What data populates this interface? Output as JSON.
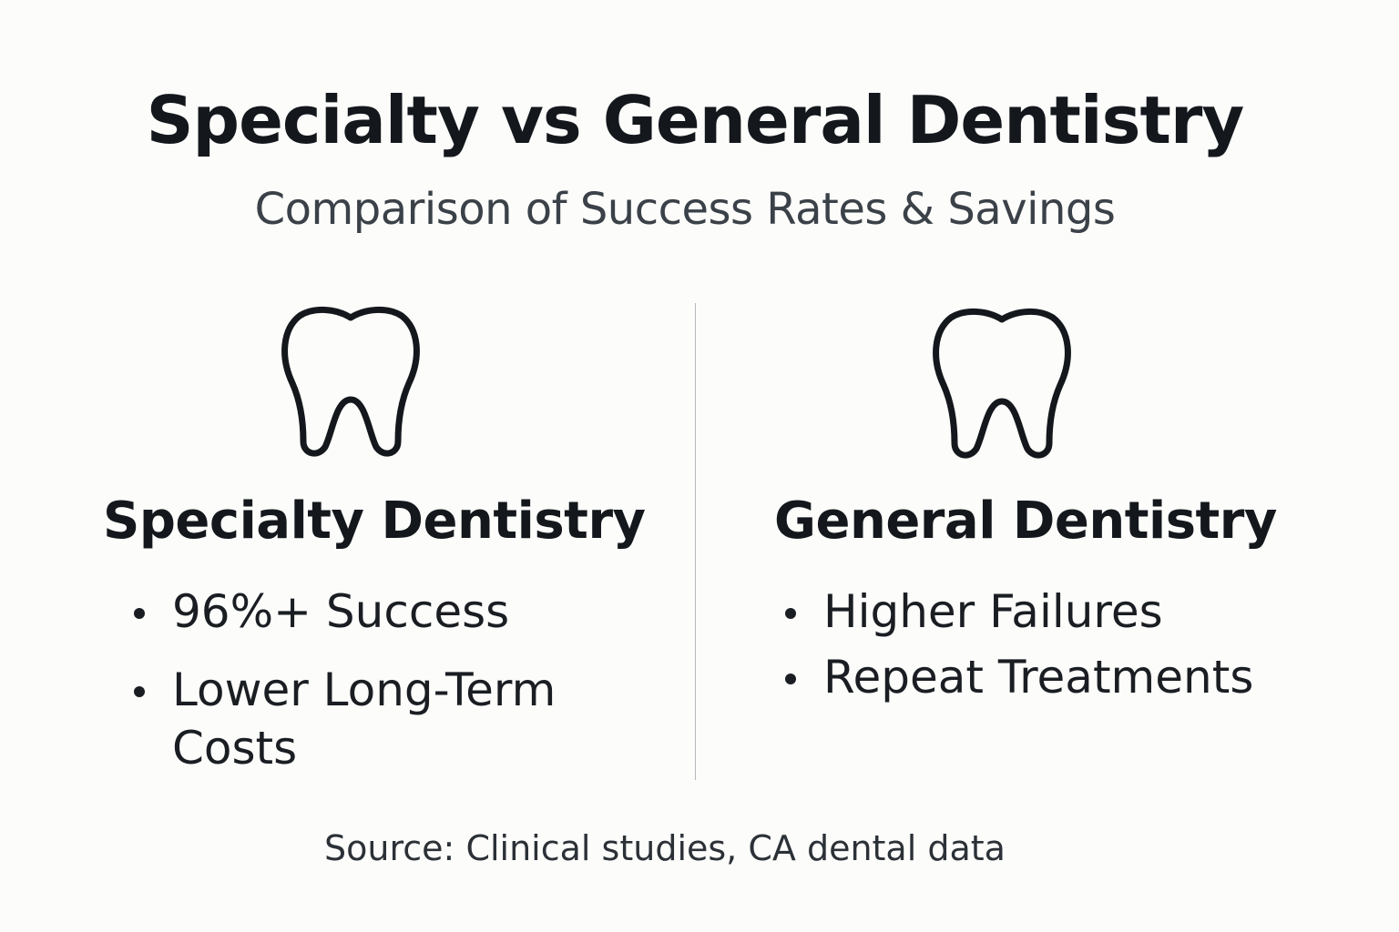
{
  "header": {
    "title": "Specialty vs General Dentistry",
    "subtitle": "Comparison of Success Rates & Savings"
  },
  "columns": [
    {
      "icon": "tooth-icon",
      "heading": "Specialty Dentistry",
      "bullets": [
        "96%+ Success",
        "Lower Long-Term Costs"
      ]
    },
    {
      "icon": "tooth-icon",
      "heading": "General Dentistry",
      "bullets": [
        "Higher Failures",
        "Repeat Treatments"
      ]
    }
  ],
  "footer": {
    "source": "Source: Clinical studies, CA dental data"
  },
  "colors": {
    "background": "#fcfcfa",
    "text": "#14181d",
    "divider": "#b6b9bc"
  }
}
